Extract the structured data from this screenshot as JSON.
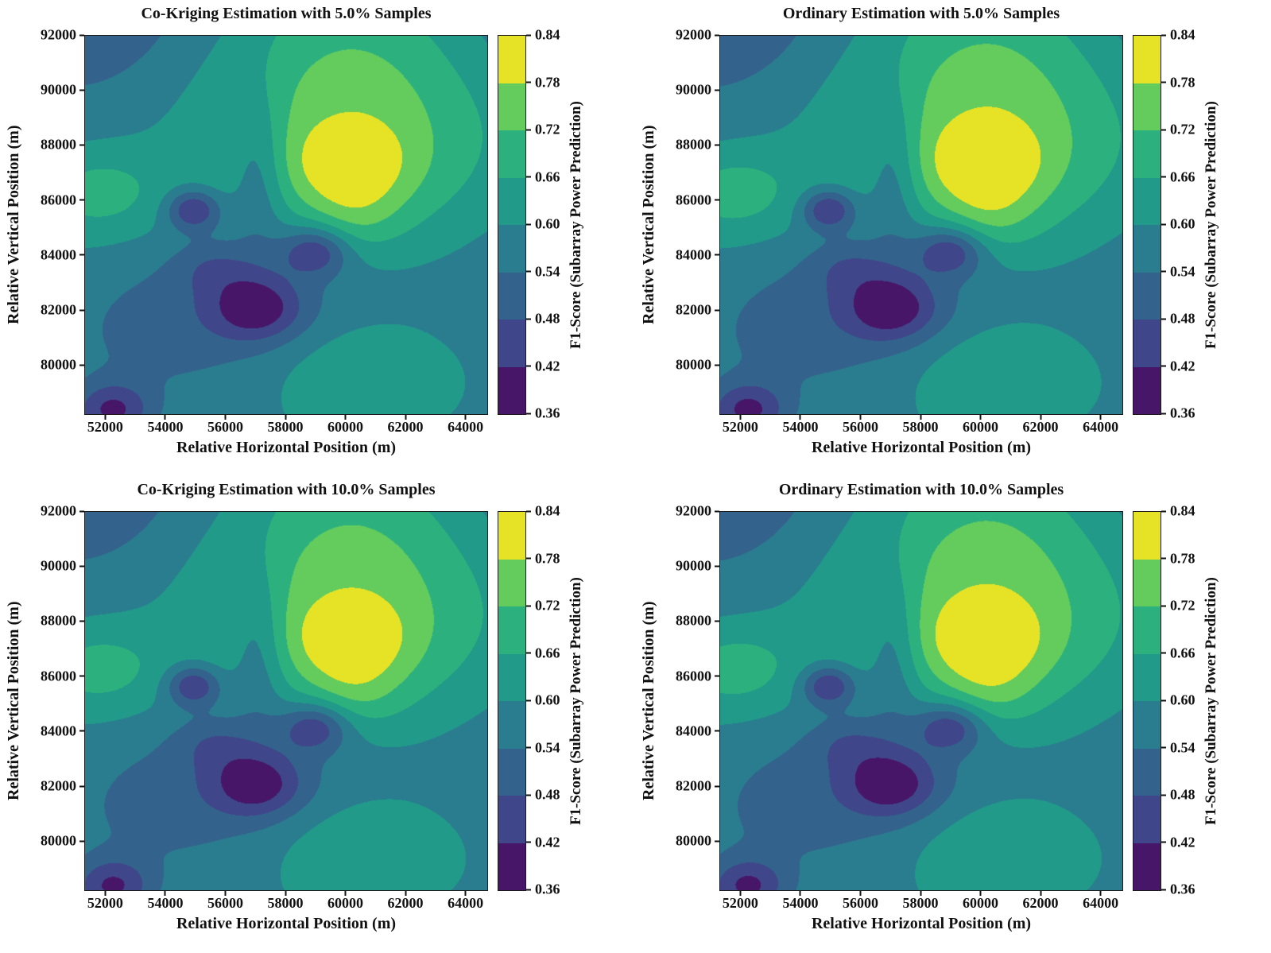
{
  "figure": {
    "xlabel": "Relative Horizontal Position (m)",
    "ylabel": "Relative Vertical Position (m)",
    "colorbar_label": "F1-Score (Subarray Power Prediction)",
    "subplots": [
      {
        "title": "Co-Kriging Estimation with 5.0% Samples"
      },
      {
        "title": "Ordinary Estimation with 5.0% Samples"
      },
      {
        "title": "Co-Kriging Estimation with 10.0% Samples"
      },
      {
        "title": "Ordinary Estimation with 10.0% Samples"
      }
    ]
  },
  "chart_data": {
    "type": "heatmap",
    "subtype": "filled-contour",
    "x_range": [
      51300,
      64700
    ],
    "y_range": [
      78250,
      92000
    ],
    "x_ticks": [
      52000,
      54000,
      56000,
      58000,
      60000,
      62000,
      64000
    ],
    "y_ticks": [
      80000,
      82000,
      84000,
      86000,
      88000,
      90000,
      92000
    ],
    "levels": [
      0.36,
      0.42,
      0.48,
      0.54,
      0.6,
      0.66,
      0.72,
      0.78,
      0.84
    ],
    "band_colors": [
      "#471669",
      "#3f4689",
      "#33638d",
      "#2a7d8e",
      "#219a8a",
      "#2cb17e",
      "#64cb5d",
      "#e6e326"
    ],
    "colorbar_range": [
      0.36,
      0.84
    ],
    "grid": "off",
    "field": {
      "description": "F1-score surface approximated as base + sum of anisotropic gaussian bumps (data coordinates in meters)",
      "base": 0.595,
      "gaussians": [
        {
          "cx": 60400,
          "cy": 88600,
          "sx": 4100,
          "sy": 3600,
          "a": 0.155
        },
        {
          "cx": 60100,
          "cy": 87200,
          "sx": 1400,
          "sy": 1150,
          "a": 0.13
        },
        {
          "cx": 60500,
          "cy": 92000,
          "sx": 3000,
          "sy": 2500,
          "a": 0.04
        },
        {
          "cx": 60300,
          "cy": 85300,
          "sx": 1100,
          "sy": 900,
          "a": 0.05
        },
        {
          "cx": 57300,
          "cy": 82800,
          "sx": 3300,
          "sy": 2200,
          "a": -0.085
        },
        {
          "cx": 57000,
          "cy": 82100,
          "sx": 1050,
          "sy": 800,
          "a": -0.165
        },
        {
          "cx": 54900,
          "cy": 85700,
          "sx": 620,
          "sy": 520,
          "a": -0.19
        },
        {
          "cx": 58950,
          "cy": 84200,
          "sx": 780,
          "sy": 620,
          "a": -0.17
        },
        {
          "cx": 57050,
          "cy": 87200,
          "sx": 620,
          "sy": 2100,
          "a": -0.095
        },
        {
          "cx": 52000,
          "cy": 93000,
          "sx": 3800,
          "sy": 3200,
          "a": -0.1
        },
        {
          "cx": 66500,
          "cy": 92800,
          "sx": 3600,
          "sy": 2800,
          "a": -0.085
        },
        {
          "cx": 66200,
          "cy": 83200,
          "sx": 3200,
          "sy": 3200,
          "a": -0.055
        },
        {
          "cx": 51700,
          "cy": 86300,
          "sx": 1500,
          "sy": 1150,
          "a": 0.095
        },
        {
          "cx": 52200,
          "cy": 78400,
          "sx": 900,
          "sy": 700,
          "a": -0.175
        },
        {
          "cx": 60700,
          "cy": 79900,
          "sx": 2300,
          "sy": 1300,
          "a": 0.075
        },
        {
          "cx": 53500,
          "cy": 81000,
          "sx": 2500,
          "sy": 1800,
          "a": -0.05
        },
        {
          "cx": 55600,
          "cy": 83600,
          "sx": 900,
          "sy": 700,
          "a": -0.07
        }
      ]
    },
    "variants": [
      {
        "neg": 1.0,
        "pos": 1.0
      },
      {
        "neg": 1.02,
        "pos": 1.04
      },
      {
        "neg": 0.98,
        "pos": 1.0
      },
      {
        "neg": 1.0,
        "pos": 1.03
      }
    ]
  }
}
